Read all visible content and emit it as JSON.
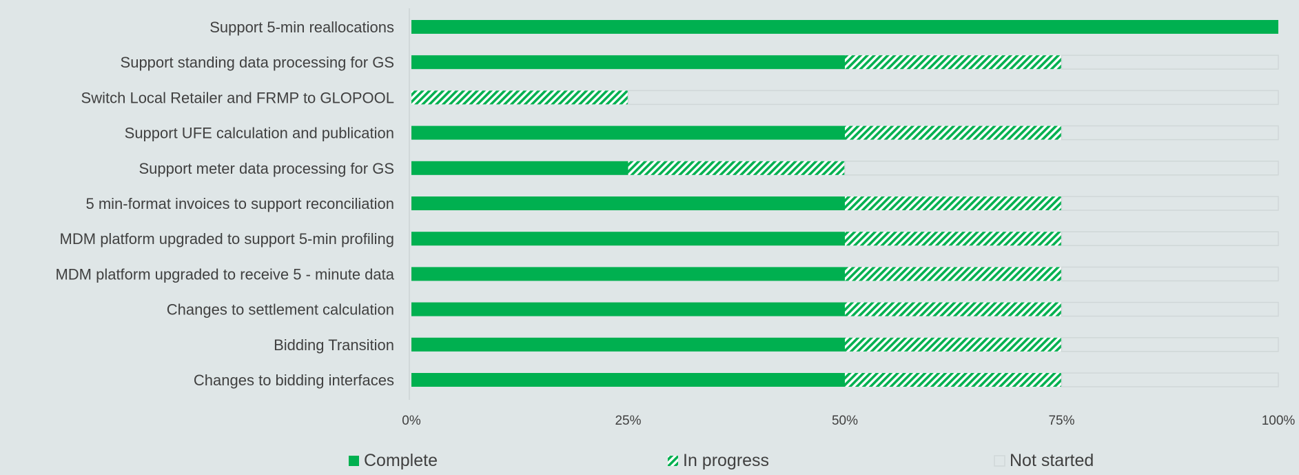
{
  "chart_data": {
    "type": "bar",
    "orientation": "horizontal",
    "stacked": true,
    "categories": [
      "Support 5-min reallocations",
      "Support standing data processing for GS",
      "Switch Local Retailer and FRMP to GLOPOOL",
      "Support UFE calculation and publication",
      "Support meter data processing for GS",
      "5 min-format invoices to support reconciliation",
      "MDM platform upgraded to support 5-min profiling",
      "MDM platform upgraded to receive 5 - minute data",
      "Changes to settlement calculation",
      "Bidding Transition",
      "Changes to bidding interfaces"
    ],
    "series": [
      {
        "name": "Complete",
        "color": "#00b050",
        "pattern": "solid",
        "values": [
          100,
          50,
          0,
          50,
          25,
          50,
          50,
          50,
          50,
          50,
          50
        ]
      },
      {
        "name": "In progress",
        "color": "#00b050",
        "pattern": "diagonal-hatch",
        "values": [
          0,
          25,
          25,
          25,
          25,
          25,
          25,
          25,
          25,
          25,
          25
        ]
      },
      {
        "name": "Not started",
        "color": "#d0d7d8",
        "pattern": "outline",
        "values": [
          0,
          25,
          75,
          25,
          50,
          25,
          25,
          25,
          25,
          25,
          25
        ]
      }
    ],
    "xlim": [
      0,
      100
    ],
    "x_ticks": [
      "0%",
      "25%",
      "50%",
      "75%",
      "100%"
    ],
    "x_tick_values": [
      0,
      25,
      50,
      75,
      100
    ],
    "legend_position": "bottom",
    "grid": false
  }
}
